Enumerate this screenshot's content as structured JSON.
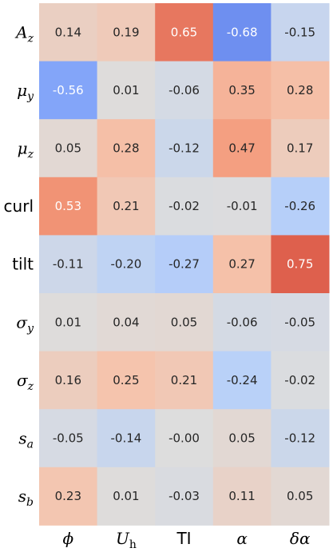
{
  "chart_data": {
    "type": "heatmap",
    "title": "",
    "xlabel": "",
    "ylabel": "",
    "color_scale": "coolwarm",
    "vmin": -1,
    "vmax": 1,
    "colorbar": false,
    "rows": [
      {
        "label": "A",
        "sub": "z",
        "italic": true
      },
      {
        "label": "μ",
        "sub": "y",
        "italic": true
      },
      {
        "label": "μ",
        "sub": "z",
        "italic": true
      },
      {
        "label": "curl",
        "sub": "",
        "italic": false
      },
      {
        "label": "tilt",
        "sub": "",
        "italic": false
      },
      {
        "label": "σ",
        "sub": "y",
        "italic": true
      },
      {
        "label": "σ",
        "sub": "z",
        "italic": true
      },
      {
        "label": "s",
        "sub": "a",
        "italic": true
      },
      {
        "label": "s",
        "sub": "b",
        "italic": true
      }
    ],
    "columns": [
      {
        "label": "ϕ",
        "sub": "",
        "italic": true
      },
      {
        "label": "U",
        "sub": "h",
        "italic": true
      },
      {
        "label": "TI",
        "sub": "",
        "italic": false
      },
      {
        "label": "α",
        "sub": "",
        "italic": true
      },
      {
        "label": "δα",
        "sub": "",
        "italic": true
      }
    ],
    "values": [
      [
        0.14,
        0.19,
        0.65,
        -0.68,
        -0.15
      ],
      [
        -0.56,
        0.01,
        -0.06,
        0.35,
        0.28
      ],
      [
        0.05,
        0.28,
        -0.12,
        0.47,
        0.17
      ],
      [
        0.53,
        0.21,
        -0.02,
        -0.01,
        -0.26
      ],
      [
        -0.11,
        -0.2,
        -0.27,
        0.27,
        0.75
      ],
      [
        0.01,
        0.04,
        0.05,
        -0.06,
        -0.05
      ],
      [
        0.16,
        0.25,
        0.21,
        -0.24,
        -0.02
      ],
      [
        -0.05,
        -0.14,
        -0.0,
        0.05,
        -0.12
      ],
      [
        0.23,
        0.01,
        -0.03,
        0.11,
        0.05
      ]
    ],
    "value_labels": [
      [
        "0.14",
        "0.19",
        "0.65",
        "-0.68",
        "-0.15"
      ],
      [
        "-0.56",
        "0.01",
        "-0.06",
        "0.35",
        "0.28"
      ],
      [
        "0.05",
        "0.28",
        "-0.12",
        "0.47",
        "0.17"
      ],
      [
        "0.53",
        "0.21",
        "-0.02",
        "-0.01",
        "-0.26"
      ],
      [
        "-0.11",
        "-0.20",
        "-0.27",
        "0.27",
        "0.75"
      ],
      [
        "0.01",
        "0.04",
        "0.05",
        "-0.06",
        "-0.05"
      ],
      [
        "0.16",
        "0.25",
        "0.21",
        "-0.24",
        "-0.02"
      ],
      [
        "-0.05",
        "-0.14",
        "-0.00",
        "0.05",
        "-0.12"
      ],
      [
        "0.23",
        "0.01",
        "-0.03",
        "0.11",
        "0.05"
      ]
    ]
  }
}
